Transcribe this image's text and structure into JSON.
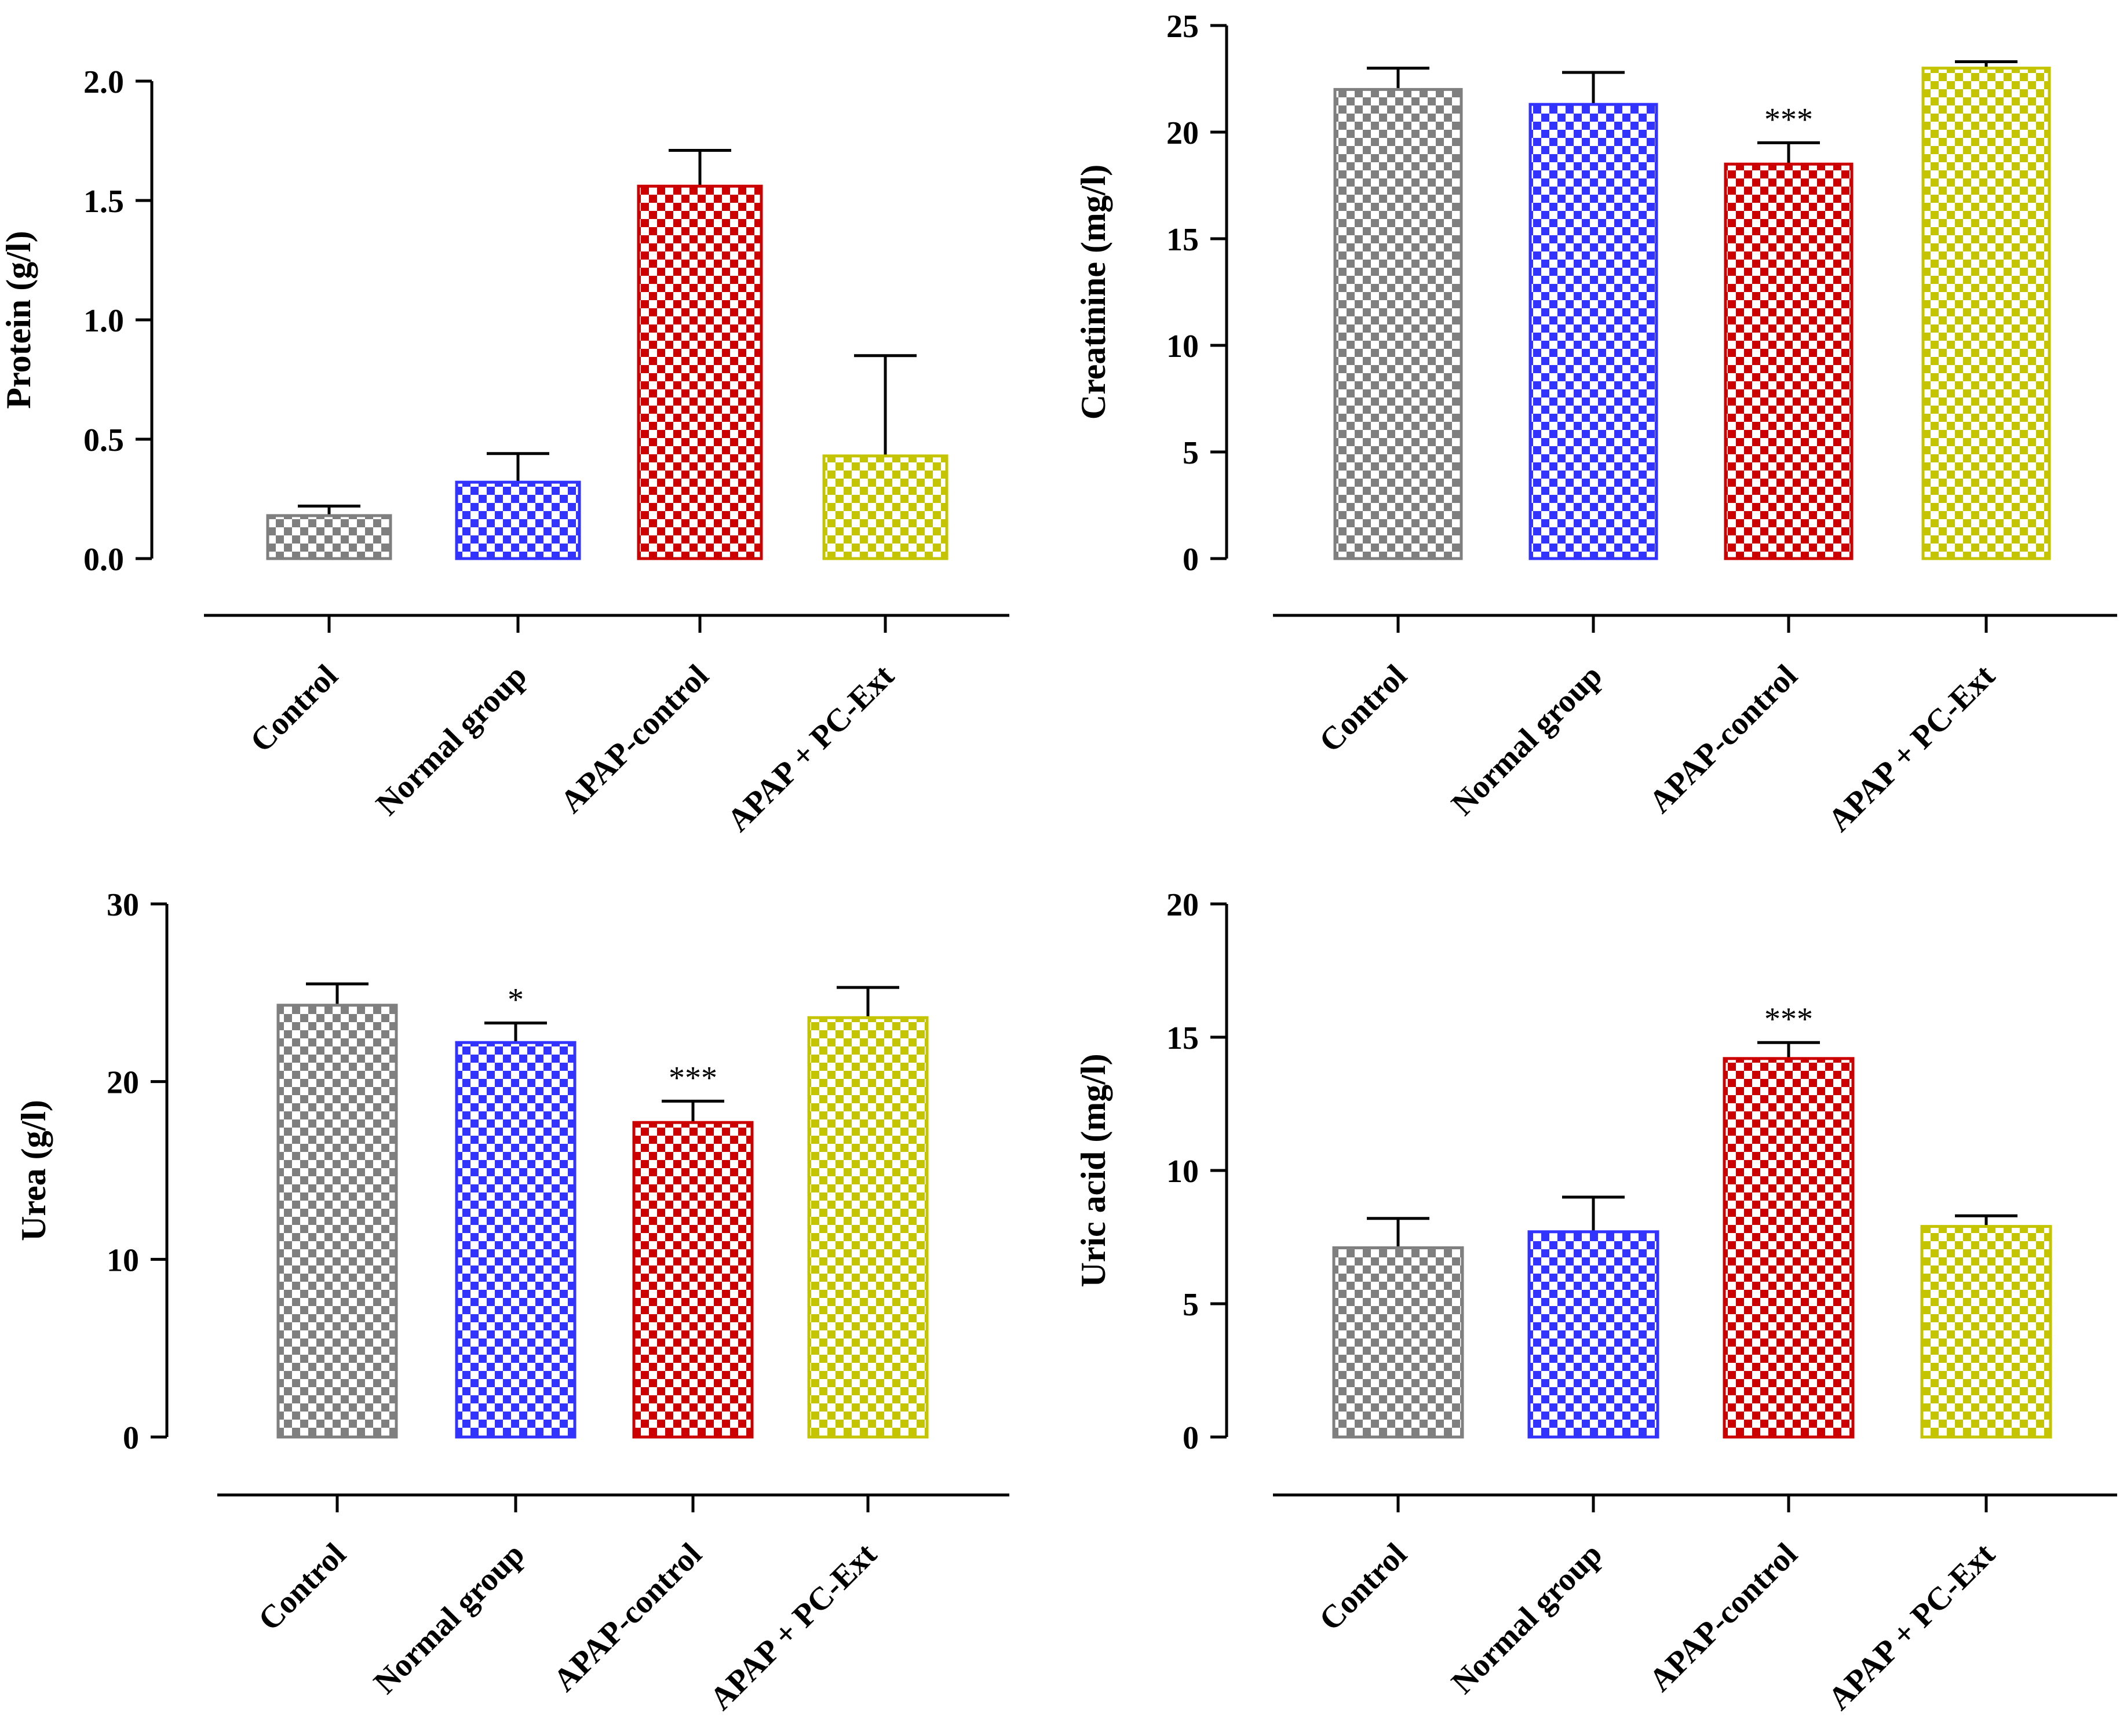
{
  "colors": {
    "Control": "#7f7f7f",
    "Normal group": "#3333ff",
    "APAP-control": "#cc0000",
    "APAP + PC-Ext": "#c4c400"
  },
  "chart_data": [
    {
      "type": "bar",
      "ylabel": "Protein (g/l)",
      "categories": [
        "Control",
        "Normal group",
        "APAP-control",
        "APAP + PC-Ext"
      ],
      "values": [
        0.18,
        0.32,
        1.56,
        0.43
      ],
      "errors": [
        0.04,
        0.12,
        0.15,
        0.42
      ],
      "significance": [
        "",
        "",
        "",
        ""
      ],
      "ylim": [
        0,
        2.0
      ],
      "yticks": [
        0.0,
        0.5,
        1.0,
        1.5,
        2.0
      ],
      "yticklabels": [
        "0.0",
        "0.5",
        "1.0",
        "1.5",
        "2.0"
      ]
    },
    {
      "type": "bar",
      "ylabel": "Creatinine (mg/l)",
      "categories": [
        "Control",
        "Normal group",
        "APAP-control",
        "APAP + PC-Ext"
      ],
      "values": [
        22.0,
        21.3,
        18.5,
        23.0
      ],
      "errors": [
        1.0,
        1.5,
        1.0,
        0.3
      ],
      "significance": [
        "",
        "",
        "***",
        ""
      ],
      "ylim": [
        0,
        25
      ],
      "yticks": [
        0,
        5,
        10,
        15,
        20,
        25
      ],
      "yticklabels": [
        "0",
        "5",
        "10",
        "15",
        "20",
        "25"
      ]
    },
    {
      "type": "bar",
      "ylabel": "Urea (g/l)",
      "categories": [
        "Control",
        "Normal group",
        "APAP-control",
        "APAP + PC-Ext"
      ],
      "values": [
        24.3,
        22.2,
        17.7,
        23.6
      ],
      "errors": [
        1.2,
        1.1,
        1.2,
        1.7
      ],
      "significance": [
        "",
        "*",
        "***",
        ""
      ],
      "ylim": [
        0,
        30
      ],
      "yticks": [
        0,
        10,
        20,
        30
      ],
      "yticklabels": [
        "0",
        "10",
        "20",
        "30"
      ]
    },
    {
      "type": "bar",
      "ylabel": "Uric acid (mg/l)",
      "categories": [
        "Control",
        "Normal group",
        "APAP-control",
        "APAP + PC-Ext"
      ],
      "values": [
        7.1,
        7.7,
        14.2,
        7.9
      ],
      "errors": [
        1.1,
        1.3,
        0.6,
        0.4
      ],
      "significance": [
        "",
        "",
        "***",
        ""
      ],
      "ylim": [
        0,
        20
      ],
      "yticks": [
        0,
        5,
        10,
        15,
        20
      ],
      "yticklabels": [
        "0",
        "5",
        "10",
        "15",
        "20"
      ]
    }
  ]
}
